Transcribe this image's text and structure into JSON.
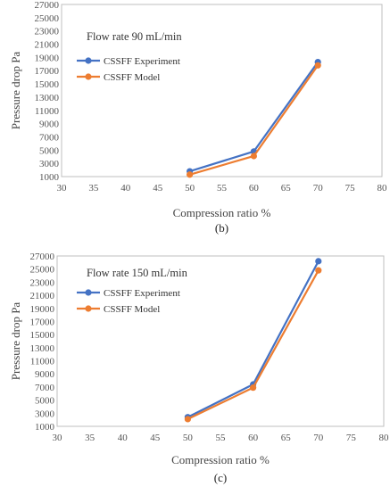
{
  "chart_data": [
    {
      "type": "line",
      "annotation": "Flow rate 90 mL/min",
      "xlabel": "Compression ratio %",
      "ylabel": "Pressure drop Pa",
      "caption": "(b)",
      "xlim": [
        30,
        80
      ],
      "ylim": [
        1000,
        27000
      ],
      "x_ticks": [
        30,
        35,
        40,
        45,
        50,
        55,
        60,
        65,
        70,
        75,
        80
      ],
      "y_ticks": [
        1000,
        3000,
        5000,
        7000,
        9000,
        11000,
        13000,
        15000,
        17000,
        19000,
        21000,
        23000,
        25000,
        27000
      ],
      "x": [
        50,
        60,
        70
      ],
      "series": [
        {
          "name": "CSSFF  Experiment",
          "color": "#4472C4",
          "values": [
            1800,
            4800,
            18300
          ]
        },
        {
          "name": "CSSFF Model",
          "color": "#ED7D31",
          "values": [
            1300,
            4100,
            17800
          ]
        }
      ],
      "legend_position": "top-left",
      "grid": false
    },
    {
      "type": "line",
      "annotation": "Flow rate 150 mL/min",
      "xlabel": "Compression ratio %",
      "ylabel": "Pressure drop Pa",
      "caption": "(c)",
      "xlim": [
        30,
        80
      ],
      "ylim": [
        1000,
        27000
      ],
      "x_ticks": [
        30,
        35,
        40,
        45,
        50,
        55,
        60,
        65,
        70,
        75,
        80
      ],
      "y_ticks": [
        1000,
        3000,
        5000,
        7000,
        9000,
        11000,
        13000,
        15000,
        17000,
        19000,
        21000,
        23000,
        25000,
        27000
      ],
      "x": [
        50,
        60,
        70
      ],
      "series": [
        {
          "name": "CSSFF  Experiment",
          "color": "#4472C4",
          "values": [
            2400,
            7400,
            26200
          ]
        },
        {
          "name": "CSSFF Model",
          "color": "#ED7D31",
          "values": [
            2100,
            6900,
            24800
          ]
        }
      ],
      "legend_position": "top-left",
      "grid": false
    }
  ]
}
